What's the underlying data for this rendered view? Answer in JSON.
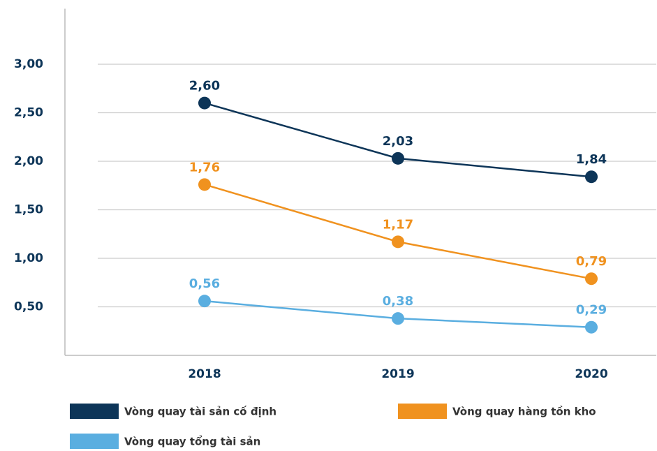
{
  "chart_data": {
    "type": "line",
    "categories": [
      "2018",
      "2019",
      "2020"
    ],
    "series": [
      {
        "name": "Vòng quay tài sản cố định",
        "color": "#0d3558",
        "values": [
          2.6,
          2.03,
          1.84
        ],
        "value_labels": [
          "2,60",
          "2,03",
          "1,84"
        ]
      },
      {
        "name": "Vòng quay hàng tồn kho",
        "color": "#f0921f",
        "values": [
          1.76,
          1.17,
          0.79
        ],
        "value_labels": [
          "1,76",
          "1,17",
          "0,79"
        ]
      },
      {
        "name": "Vòng quay tổng tài sản",
        "color": "#5aaee0",
        "values": [
          0.56,
          0.38,
          0.29
        ],
        "value_labels": [
          "0,56",
          "0,38",
          "0,29"
        ]
      }
    ],
    "ylim": [
      0,
      3.5
    ],
    "yticks": [
      {
        "value": 0.5,
        "label": "0,50"
      },
      {
        "value": 1,
        "label": "1,00"
      },
      {
        "value": 1.5,
        "label": "1,50"
      },
      {
        "value": 2,
        "label": "2,00"
      },
      {
        "value": 2.5,
        "label": "2,50"
      },
      {
        "value": 3,
        "label": "3,00"
      }
    ],
    "grid": true
  }
}
